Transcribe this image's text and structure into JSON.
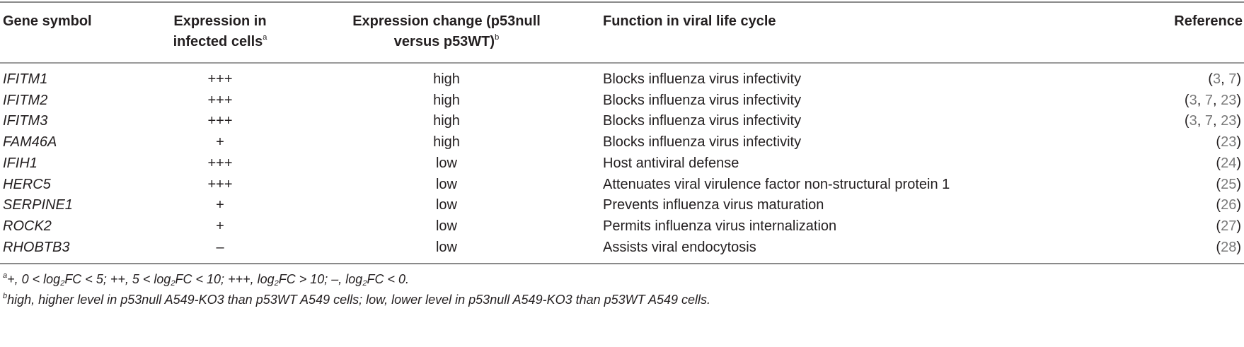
{
  "table": {
    "headers": {
      "gene": "Gene symbol",
      "expr_line1": "Expression in",
      "expr_line2": "infected cells",
      "expr_mark": "a",
      "chg_line1": "Expression change (p53null",
      "chg_line2": "versus p53WT)",
      "chg_mark": "b",
      "func": "Function in viral life cycle",
      "ref": "Reference"
    },
    "rows": [
      {
        "gene": "IFITM1",
        "expr": "+++",
        "change": "high",
        "function": "Blocks influenza virus infectivity",
        "refs": [
          "3",
          "7"
        ]
      },
      {
        "gene": "IFITM2",
        "expr": "+++",
        "change": "high",
        "function": "Blocks influenza virus infectivity",
        "refs": [
          "3",
          "7",
          "23"
        ]
      },
      {
        "gene": "IFITM3",
        "expr": "+++",
        "change": "high",
        "function": "Blocks influenza virus infectivity",
        "refs": [
          "3",
          "7",
          "23"
        ]
      },
      {
        "gene": "FAM46A",
        "expr": "+",
        "change": "high",
        "function": "Blocks influenza virus infectivity",
        "refs": [
          "23"
        ]
      },
      {
        "gene": "IFIH1",
        "expr": "+++",
        "change": "low",
        "function": "Host antiviral defense",
        "refs": [
          "24"
        ]
      },
      {
        "gene": "HERC5",
        "expr": "+++",
        "change": "low",
        "function": "Attenuates viral virulence factor non-structural protein 1",
        "refs": [
          "25"
        ]
      },
      {
        "gene": "SERPINE1",
        "expr": "+",
        "change": "low",
        "function": "Prevents influenza virus maturation",
        "refs": [
          "26"
        ]
      },
      {
        "gene": "ROCK2",
        "expr": "+",
        "change": "low",
        "function": "Permits influenza virus internalization",
        "refs": [
          "27"
        ]
      },
      {
        "gene": "RHOBTB3",
        "expr": "–",
        "change": "low",
        "function": "Assists viral endocytosis",
        "refs": [
          "28"
        ]
      }
    ]
  },
  "footnotes": {
    "a": {
      "mark": "a",
      "t1": "+, 0 < log",
      "sub1": "2",
      "t2": "FC < 5; ++, 5 < log",
      "sub2": "2",
      "t3": "FC < 10; +++, log",
      "sub3": "2",
      "t4": "FC > 10; –, log",
      "sub4": "2",
      "t5": "FC < 0."
    },
    "b": {
      "mark": "b",
      "text": "high, higher level in p53null A549-KO3 than p53WT A549 cells; low, lower level in p53null A549-KO3 than p53WT A549 cells."
    }
  },
  "colors": {
    "text": "#231f20",
    "reference_number": "#7a7a7a",
    "rule": "#9a9a9a"
  }
}
